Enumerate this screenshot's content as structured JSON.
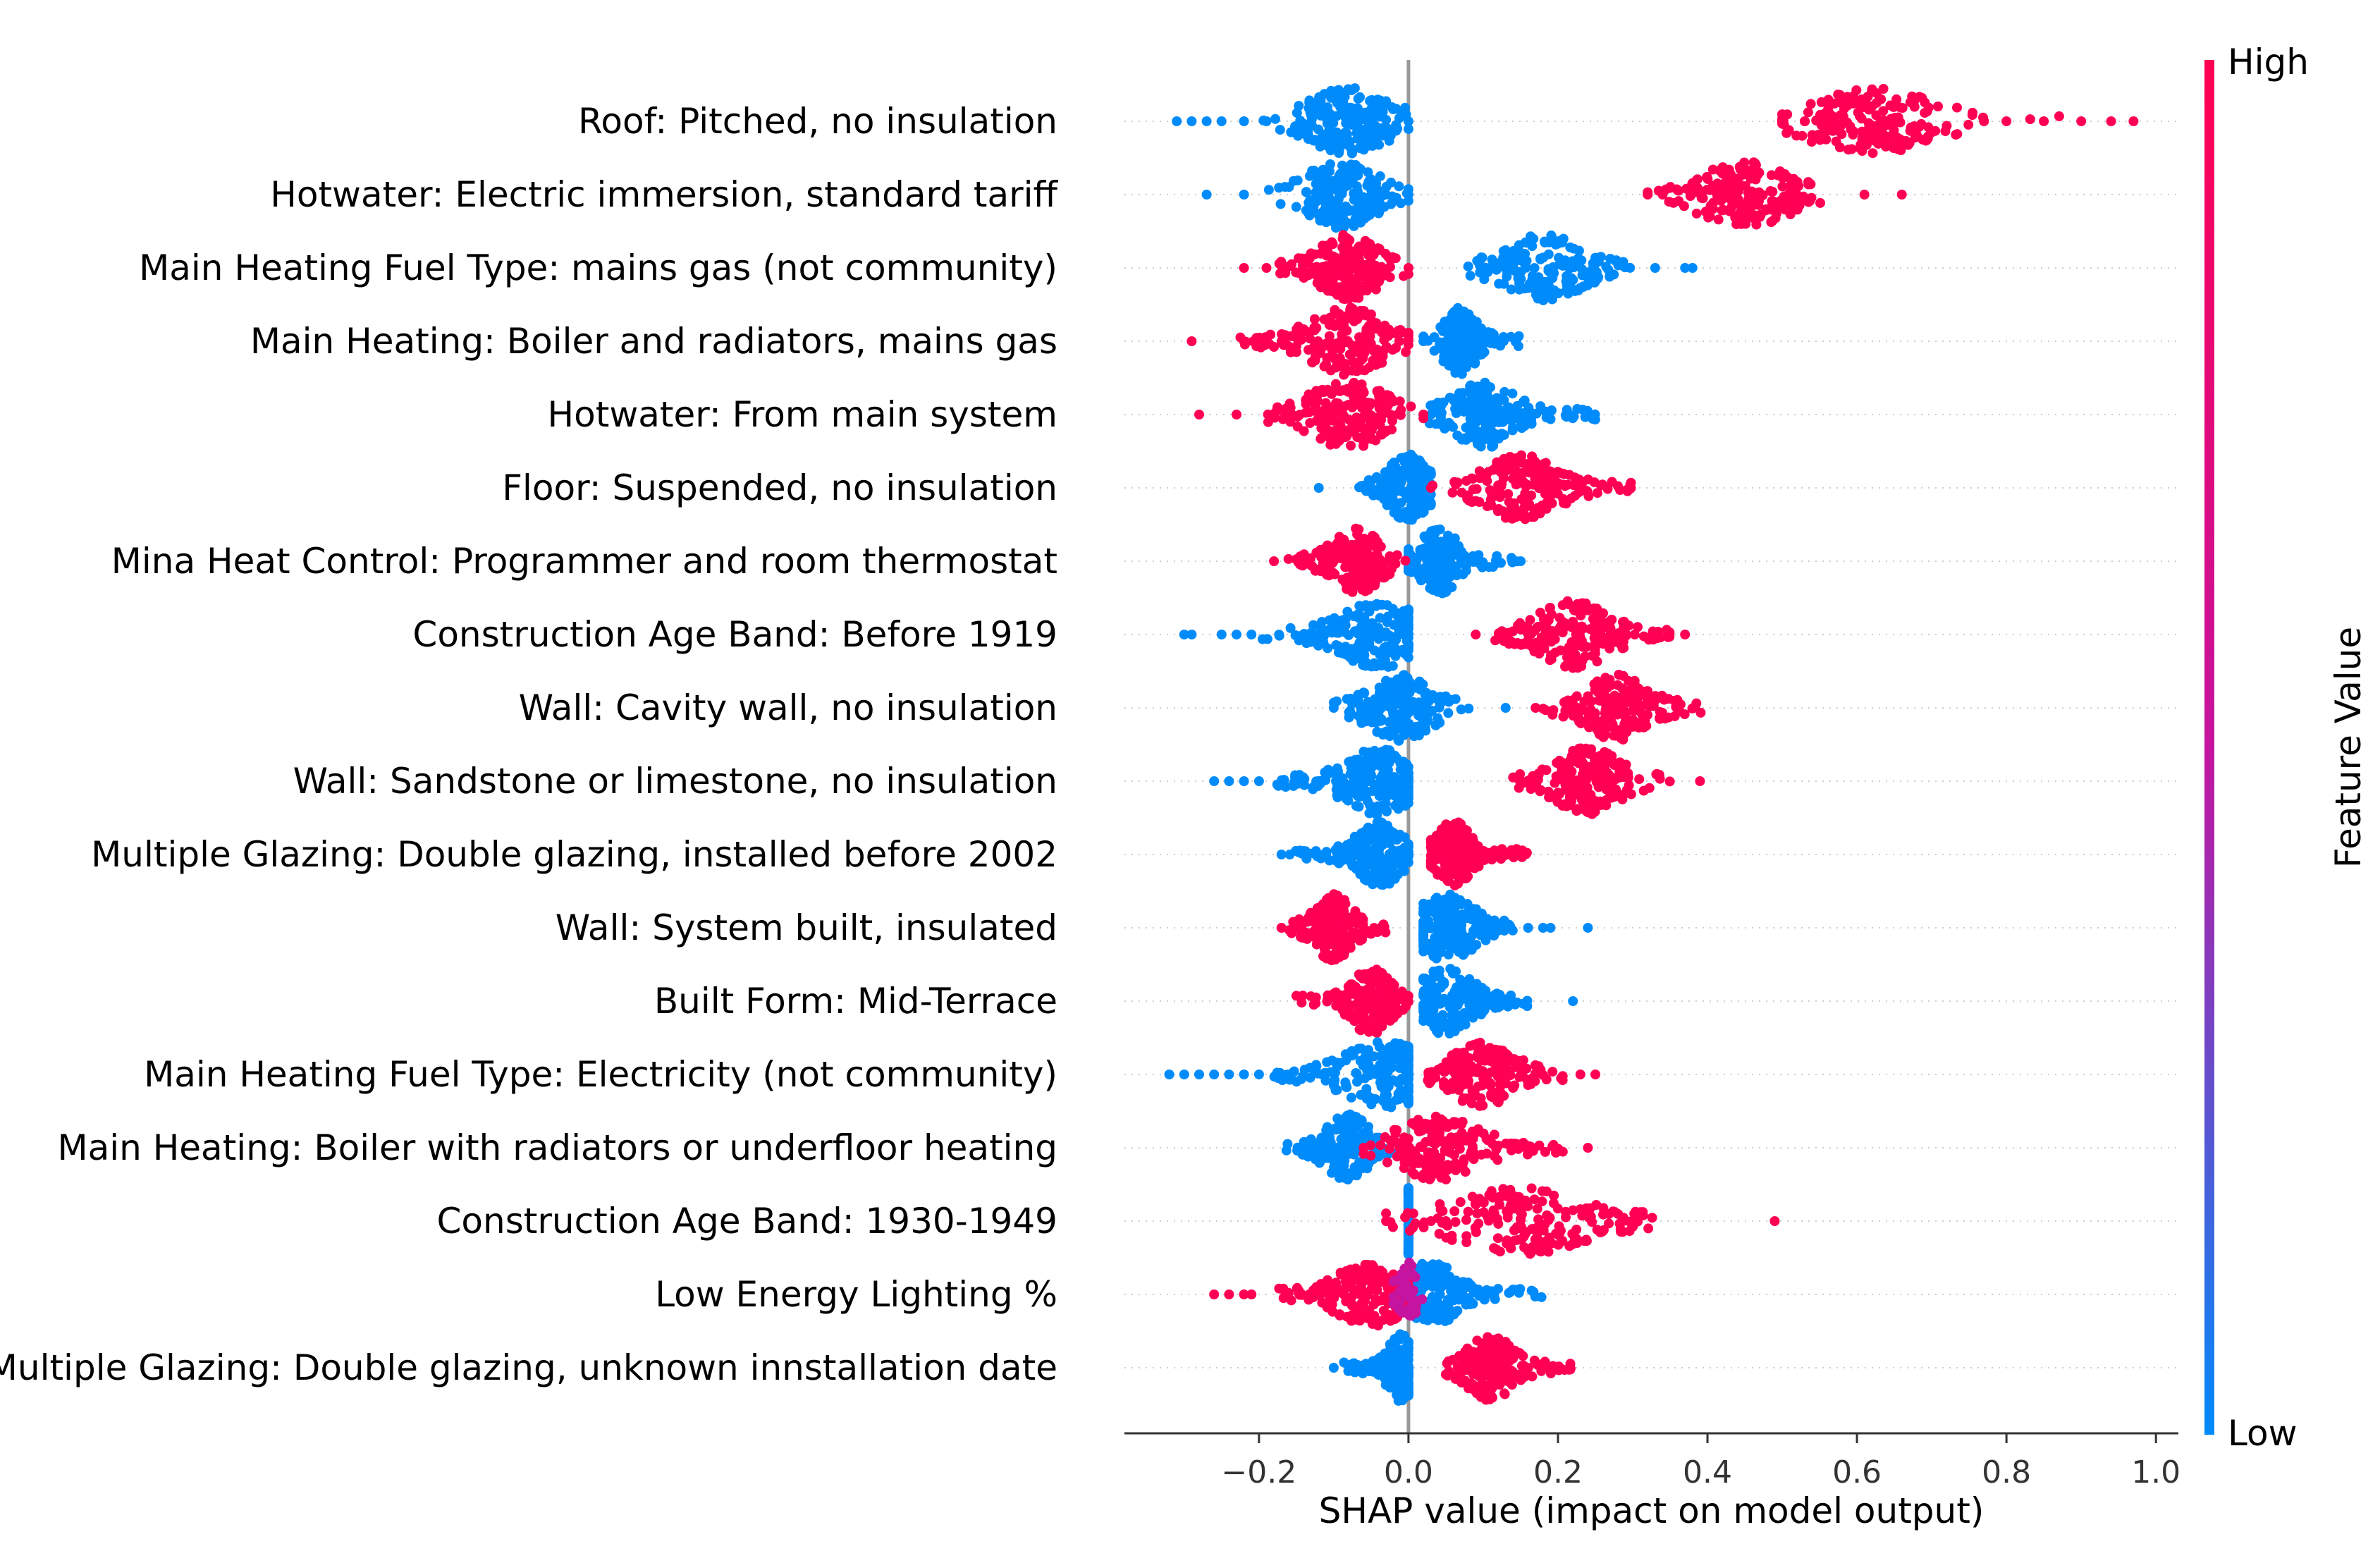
{
  "chart_data": {
    "type": "scatter",
    "subtype": "shap-beeswarm",
    "xlabel": "SHAP value (impact on model output)",
    "xlim": [
      -0.38,
      1.03
    ],
    "xticks": [
      -0.2,
      0.0,
      0.2,
      0.4,
      0.6,
      0.8,
      1.0
    ],
    "xtick_labels": [
      "−0.2",
      "0.0",
      "0.2",
      "0.4",
      "0.6",
      "0.8",
      "1.0"
    ],
    "zero_line": 0.0,
    "grid": false,
    "colorbar": {
      "label": "Feature Value",
      "high_label": "High",
      "low_label": "Low",
      "high_color": "#ff0052",
      "low_color": "#008bfb"
    },
    "features": [
      {
        "name": "Roof: Pitched, no insulation",
        "low": {
          "min": -0.31,
          "max": 0.0,
          "core": [
            -0.14,
            -0.03
          ],
          "center": -0.08,
          "outliers": [
            -0.31,
            -0.29,
            -0.27,
            -0.25,
            -0.22,
            -0.19,
            0.0
          ]
        },
        "high": {
          "min": 0.5,
          "max": 0.97,
          "core": [
            0.55,
            0.7
          ],
          "center": 0.62,
          "outliers": [
            0.5,
            0.53,
            0.77,
            0.8,
            0.85,
            0.9,
            0.94,
            0.97
          ]
        }
      },
      {
        "name": "Hotwater: Electric immersion, standard tariff",
        "low": {
          "min": -0.27,
          "max": 0.0,
          "core": [
            -0.13,
            -0.04
          ],
          "center": -0.09,
          "outliers": [
            -0.27,
            -0.22,
            0.0,
            -0.03
          ]
        },
        "high": {
          "min": 0.32,
          "max": 0.66,
          "core": [
            0.35,
            0.54
          ],
          "center": 0.45,
          "outliers": [
            0.32,
            0.34,
            0.61,
            0.66
          ]
        }
      },
      {
        "name": "Main Heating Fuel Type: mains gas (not community)",
        "low": {
          "min": 0.08,
          "max": 0.38,
          "core": [
            0.08,
            0.3
          ],
          "center": 0.18,
          "outliers": [
            0.33,
            0.37,
            0.38
          ]
        },
        "high": {
          "min": -0.22,
          "max": 0.0,
          "core": [
            -0.19,
            -0.02
          ],
          "center": -0.08,
          "outliers": [
            -0.22,
            -0.19,
            0.0
          ]
        }
      },
      {
        "name": "Main Heating: Boiler and radiators, mains gas",
        "low": {
          "min": 0.02,
          "max": 0.15,
          "core": [
            0.02,
            0.15
          ],
          "center": 0.07,
          "outliers": [
            0.02
          ]
        },
        "high": {
          "min": -0.29,
          "max": 0.0,
          "core": [
            -0.23,
            -0.02
          ],
          "center": -0.08,
          "outliers": [
            -0.29,
            -0.22
          ]
        }
      },
      {
        "name": "Hotwater: From main system",
        "low": {
          "min": 0.02,
          "max": 0.25,
          "core": [
            0.03,
            0.25
          ],
          "center": 0.1,
          "outliers": [
            0.02
          ]
        },
        "high": {
          "min": -0.28,
          "max": 0.02,
          "core": [
            -0.16,
            -0.02
          ],
          "center": -0.08,
          "outliers": [
            -0.28,
            -0.23,
            0.02
          ]
        }
      },
      {
        "name": "Floor: Suspended, no insulation",
        "low": {
          "min": -0.12,
          "max": 0.03,
          "core": [
            -0.06,
            0.03
          ],
          "center": 0.0,
          "outliers": [
            -0.12,
            -0.06
          ]
        },
        "high": {
          "min": 0.03,
          "max": 0.31,
          "core": [
            0.05,
            0.3
          ],
          "center": 0.15,
          "outliers": [
            0.03
          ]
        }
      },
      {
        "name": "Mina Heat Control: Programmer and room thermostat",
        "low": {
          "min": 0.0,
          "max": 0.15,
          "core": [
            0.0,
            0.15
          ],
          "center": 0.04,
          "outliers": [
            0.15
          ]
        },
        "high": {
          "min": -0.18,
          "max": 0.0,
          "core": [
            -0.18,
            -0.01
          ],
          "center": -0.07,
          "outliers": [
            -0.18
          ]
        }
      },
      {
        "name": "Construction Age Band: Before 1919",
        "low": {
          "min": -0.3,
          "max": 0.0,
          "core": [
            -0.2,
            0.0
          ],
          "center": -0.04,
          "outliers": [
            -0.3,
            -0.29,
            -0.25,
            -0.23,
            -0.21
          ]
        },
        "high": {
          "min": 0.09,
          "max": 0.37,
          "core": [
            0.12,
            0.35
          ],
          "center": 0.22,
          "outliers": [
            0.09,
            0.37
          ]
        }
      },
      {
        "name": "Wall: Cavity wall, no insulation",
        "low": {
          "min": -0.1,
          "max": 0.13,
          "core": [
            -0.08,
            0.03
          ],
          "center": -0.01,
          "outliers": [
            -0.1,
            0.13
          ]
        },
        "high": {
          "min": 0.17,
          "max": 0.4,
          "core": [
            0.18,
            0.4
          ],
          "center": 0.28,
          "outliers": [
            0.17
          ]
        }
      },
      {
        "name": "Wall: Sandstone or limestone, no insulation",
        "low": {
          "min": -0.26,
          "max": 0.0,
          "core": [
            -0.18,
            0.0
          ],
          "center": -0.04,
          "outliers": [
            -0.26,
            -0.24,
            -0.22,
            -0.2
          ]
        },
        "high": {
          "min": 0.14,
          "max": 0.39,
          "core": [
            0.14,
            0.35
          ],
          "center": 0.24,
          "outliers": [
            0.39
          ]
        }
      },
      {
        "name": "Multiple Glazing: Double glazing, installed before 2002",
        "low": {
          "min": -0.17,
          "max": 0.0,
          "core": [
            -0.16,
            0.0
          ],
          "center": -0.04,
          "outliers": [
            -0.17
          ]
        },
        "high": {
          "min": 0.03,
          "max": 0.16,
          "core": [
            0.03,
            0.16
          ],
          "center": 0.06,
          "outliers": []
        }
      },
      {
        "name": "Wall: System built, insulated",
        "low": {
          "min": 0.02,
          "max": 0.24,
          "core": [
            0.02,
            0.14
          ],
          "center": 0.05,
          "outliers": [
            0.16,
            0.18,
            0.19,
            0.24
          ]
        },
        "high": {
          "min": -0.17,
          "max": -0.03,
          "core": [
            -0.16,
            -0.03
          ],
          "center": -0.1,
          "outliers": [
            -0.17
          ]
        }
      },
      {
        "name": "Built Form: Mid-Terrace",
        "low": {
          "min": 0.02,
          "max": 0.22,
          "core": [
            0.02,
            0.16
          ],
          "center": 0.05,
          "outliers": [
            0.22
          ]
        },
        "high": {
          "min": -0.15,
          "max": 0.0,
          "core": [
            -0.15,
            0.0
          ],
          "center": -0.05,
          "outliers": []
        }
      },
      {
        "name": "Main Heating Fuel Type: Electricity (not community)",
        "low": {
          "min": -0.32,
          "max": 0.0,
          "core": [
            -0.18,
            0.0
          ],
          "center": -0.03,
          "outliers": [
            -0.32,
            -0.3,
            -0.28,
            -0.26,
            -0.24,
            -0.22,
            -0.2
          ]
        },
        "high": {
          "min": 0.02,
          "max": 0.25,
          "core": [
            0.02,
            0.21
          ],
          "center": 0.1,
          "outliers": [
            0.23,
            0.25
          ]
        }
      },
      {
        "name": "Main Heating: Boiler with radiators or underfloor heating",
        "low": {
          "min": -0.17,
          "max": 0.0,
          "core": [
            -0.17,
            -0.03
          ],
          "center": -0.08,
          "outliers": [
            -0.01,
            0.0
          ]
        },
        "high": {
          "min": -0.06,
          "max": 0.24,
          "core": [
            0.01,
            0.21
          ],
          "center": 0.04,
          "outliers": [
            -0.06,
            0.24
          ]
        }
      },
      {
        "name": "Construction Age Band: 1930-1949",
        "low": {
          "min": 0.0,
          "max": 0.0,
          "core": [
            0.0,
            0.0
          ],
          "center": 0.0,
          "outliers": []
        },
        "high": {
          "min": -0.03,
          "max": 0.49,
          "core": [
            0.07,
            0.33
          ],
          "center": 0.15,
          "outliers": [
            -0.03,
            0.03,
            0.05,
            0.49
          ]
        }
      },
      {
        "name": "Low Energy Lighting %",
        "low": {
          "min": -0.01,
          "max": 0.18,
          "core": [
            0.0,
            0.18
          ],
          "center": 0.03,
          "outliers": []
        },
        "high": {
          "min": -0.26,
          "max": 0.0,
          "core": [
            -0.17,
            -0.01
          ],
          "center": -0.05,
          "outliers": [
            -0.26,
            -0.24,
            -0.22,
            -0.21
          ]
        },
        "mid": {
          "min": -0.02,
          "max": 0.06,
          "center": 0.0
        }
      },
      {
        "name": "Multiple Glazing: Double glazing, unknown innstallation date",
        "low": {
          "min": -0.1,
          "max": 0.0,
          "core": [
            -0.09,
            0.0
          ],
          "center": -0.01,
          "outliers": [
            -0.1
          ]
        },
        "high": {
          "min": 0.05,
          "max": 0.22,
          "core": [
            0.05,
            0.22
          ],
          "center": 0.11,
          "outliers": []
        }
      }
    ]
  }
}
